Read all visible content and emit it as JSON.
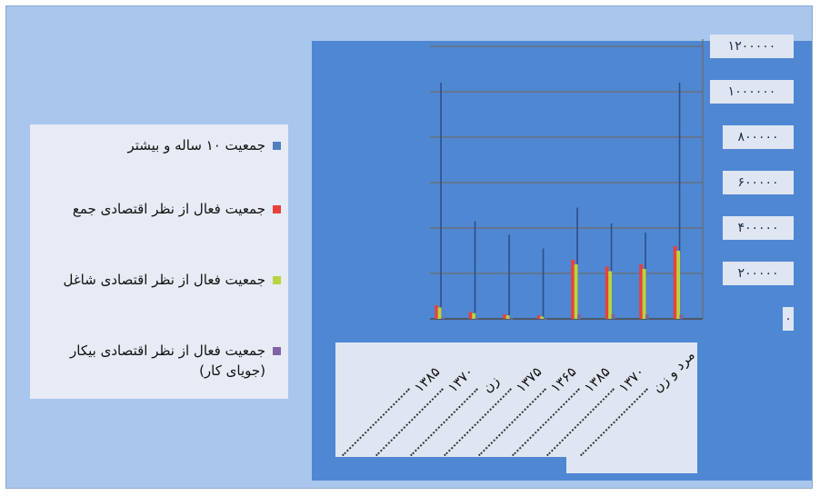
{
  "chart_data": {
    "type": "bar",
    "categories": [
      "۱۳۸۵",
      "۱۳۷۰",
      "زن",
      "۱۳۷۵",
      "۱۳۶۵",
      "۱۳۸۵",
      "۱۳۷۰",
      "مرد و زن"
    ],
    "series": [
      {
        "name": "جمعیت ۱۰ ساله و بیشتر",
        "color": "#4f81bd",
        "values": [
          1040000,
          430000,
          370000,
          310000,
          490000,
          420000,
          380000,
          1040000
        ]
      },
      {
        "name": "جمعیت فعال از نظر اقتصادی جمع",
        "color": "#e8413c",
        "values": [
          60000,
          30000,
          20000,
          15000,
          260000,
          230000,
          240000,
          320000
        ]
      },
      {
        "name": "جمعیت فعال از نظر اقتصادی شاغل",
        "color": "#b9d341",
        "values": [
          50000,
          25000,
          15000,
          10000,
          240000,
          210000,
          220000,
          300000
        ]
      },
      {
        "name": "جمعیت فعال از نظر اقتصادی بیکار (جویای کار)",
        "color": "#8064a2",
        "values": [
          5000,
          3000,
          2000,
          2000,
          20000,
          20000,
          20000,
          20000
        ]
      }
    ],
    "yticks": [
      "۱۲۰۰۰۰۰",
      "۱۰۰۰۰۰۰",
      "۸۰۰۰۰۰",
      "۶۰۰۰۰۰",
      "۴۰۰۰۰۰",
      "۲۰۰۰۰۰",
      "۰"
    ],
    "ylim": [
      0,
      1200000
    ],
    "grid": true,
    "legend_position": "left",
    "xlabel": "",
    "ylabel": "",
    "title": ""
  }
}
